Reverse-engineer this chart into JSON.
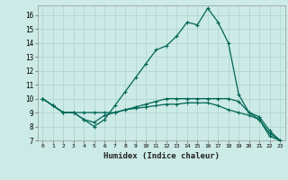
{
  "xlabel": "Humidex (Indice chaleur)",
  "ylabel": "",
  "background_color": "#cceae6",
  "grid_color": "#b0d8d0",
  "line_color": "#006655",
  "xlim": [
    -0.5,
    23.5
  ],
  "ylim": [
    7,
    16.7
  ],
  "yticks": [
    7,
    8,
    9,
    10,
    11,
    12,
    13,
    14,
    15,
    16
  ],
  "xticks": [
    0,
    1,
    2,
    3,
    4,
    5,
    6,
    7,
    8,
    9,
    10,
    11,
    12,
    13,
    14,
    15,
    16,
    17,
    18,
    19,
    20,
    21,
    22,
    23
  ],
  "line1_x": [
    0,
    1,
    2,
    3,
    4,
    5,
    6,
    7,
    8,
    9,
    10,
    11,
    12,
    13,
    14,
    15,
    16,
    17,
    18,
    19,
    20,
    21,
    22,
    23
  ],
  "line1_y": [
    10.0,
    9.5,
    9.0,
    9.0,
    8.5,
    8.0,
    8.5,
    9.5,
    10.5,
    11.5,
    12.5,
    13.5,
    13.8,
    14.5,
    15.5,
    15.3,
    16.5,
    15.5,
    14.0,
    10.3,
    9.0,
    8.5,
    7.3,
    7.0
  ],
  "line2_x": [
    0,
    1,
    2,
    3,
    4,
    5,
    6,
    7,
    8,
    9,
    10,
    11,
    12,
    13,
    14,
    15,
    16,
    17,
    18,
    19,
    20,
    21,
    22,
    23
  ],
  "line2_y": [
    10.0,
    9.5,
    9.0,
    9.0,
    9.0,
    9.0,
    9.0,
    9.0,
    9.2,
    9.4,
    9.6,
    9.8,
    10.0,
    10.0,
    10.0,
    10.0,
    10.0,
    10.0,
    10.0,
    9.8,
    9.0,
    8.7,
    7.7,
    7.0
  ],
  "line3_x": [
    0,
    1,
    2,
    3,
    4,
    5,
    6,
    7,
    8,
    9,
    10,
    11,
    12,
    13,
    14,
    15,
    16,
    17,
    18,
    19,
    20,
    21,
    22,
    23
  ],
  "line3_y": [
    10.0,
    9.5,
    9.0,
    9.0,
    8.5,
    8.3,
    8.8,
    9.0,
    9.2,
    9.3,
    9.4,
    9.5,
    9.6,
    9.6,
    9.7,
    9.7,
    9.7,
    9.5,
    9.2,
    9.0,
    8.8,
    8.5,
    7.5,
    7.0
  ]
}
